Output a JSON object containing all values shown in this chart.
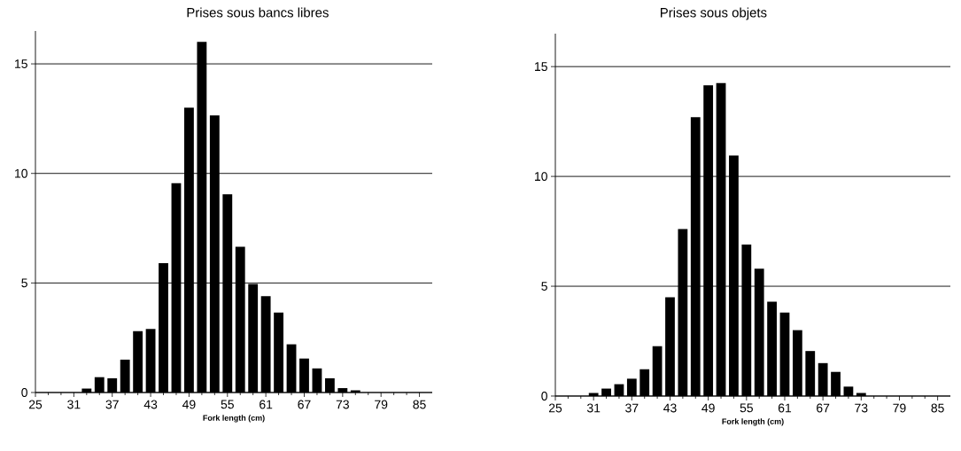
{
  "chart_data": [
    {
      "type": "histogram",
      "title": "Prises sous bancs libres",
      "xlabel": "Fork length (cm)",
      "color": "#000000",
      "bins": [
        32,
        34,
        36,
        38,
        40,
        42,
        44,
        46,
        48,
        50,
        52,
        54,
        56,
        58,
        60,
        62,
        64,
        66,
        68,
        70,
        72,
        74,
        76
      ],
      "values": [
        0.18,
        0.7,
        0.65,
        1.5,
        2.8,
        2.9,
        5.9,
        9.55,
        13.0,
        16.0,
        12.65,
        9.05,
        6.65,
        4.95,
        4.4,
        3.65,
        2.2,
        1.55,
        1.1,
        0.65,
        0.2,
        0.1
      ],
      "xlim": [
        25,
        87
      ],
      "ylim": [
        0,
        16.5
      ],
      "xticks": [
        25,
        31,
        37,
        43,
        49,
        55,
        61,
        67,
        73,
        79,
        85
      ],
      "yticks": [
        0,
        5,
        10,
        15
      ],
      "grid": "y"
    },
    {
      "type": "histogram",
      "title": "Prises sous objets",
      "xlabel": "Fork length (cm)",
      "color": "#000000",
      "bins": [
        30,
        32,
        34,
        36,
        38,
        40,
        42,
        44,
        46,
        48,
        50,
        52,
        54,
        56,
        58,
        60,
        62,
        64,
        66,
        68,
        70,
        72,
        74
      ],
      "values": [
        0.14,
        0.34,
        0.54,
        0.79,
        1.22,
        2.27,
        4.5,
        7.6,
        12.7,
        14.15,
        14.25,
        10.95,
        6.9,
        5.8,
        4.3,
        3.8,
        3.0,
        2.05,
        1.5,
        1.1,
        0.43,
        0.14
      ],
      "xlim": [
        25,
        87
      ],
      "ylim": [
        0,
        16.5
      ],
      "xticks": [
        25,
        31,
        37,
        43,
        49,
        55,
        61,
        67,
        73,
        79,
        85
      ],
      "yticks": [
        0,
        5,
        10,
        15
      ],
      "grid": "y"
    }
  ]
}
